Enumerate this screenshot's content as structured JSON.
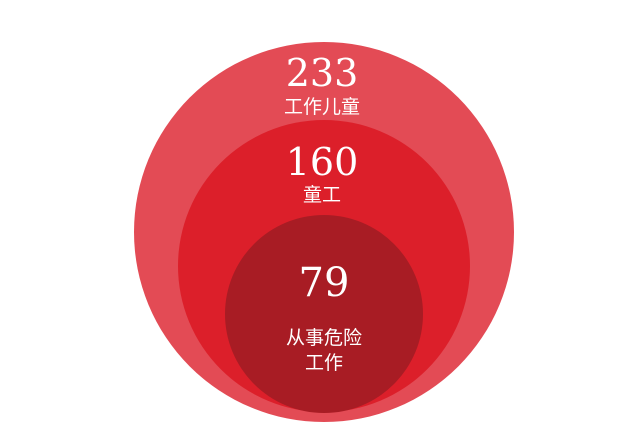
{
  "chart_data": {
    "type": "nested-circles",
    "colors": {
      "outer": "#e34b55",
      "middle": "#dc1f2a",
      "inner": "#a81c24"
    },
    "circles": [
      {
        "value": 233,
        "value_text": "233",
        "label_lines": [
          "工作儿童"
        ]
      },
      {
        "value": 160,
        "value_text": "160",
        "label_lines": [
          "童工"
        ]
      },
      {
        "value": 79,
        "value_text": "79",
        "label_lines": [
          "从事危险",
          "工作"
        ]
      }
    ]
  }
}
